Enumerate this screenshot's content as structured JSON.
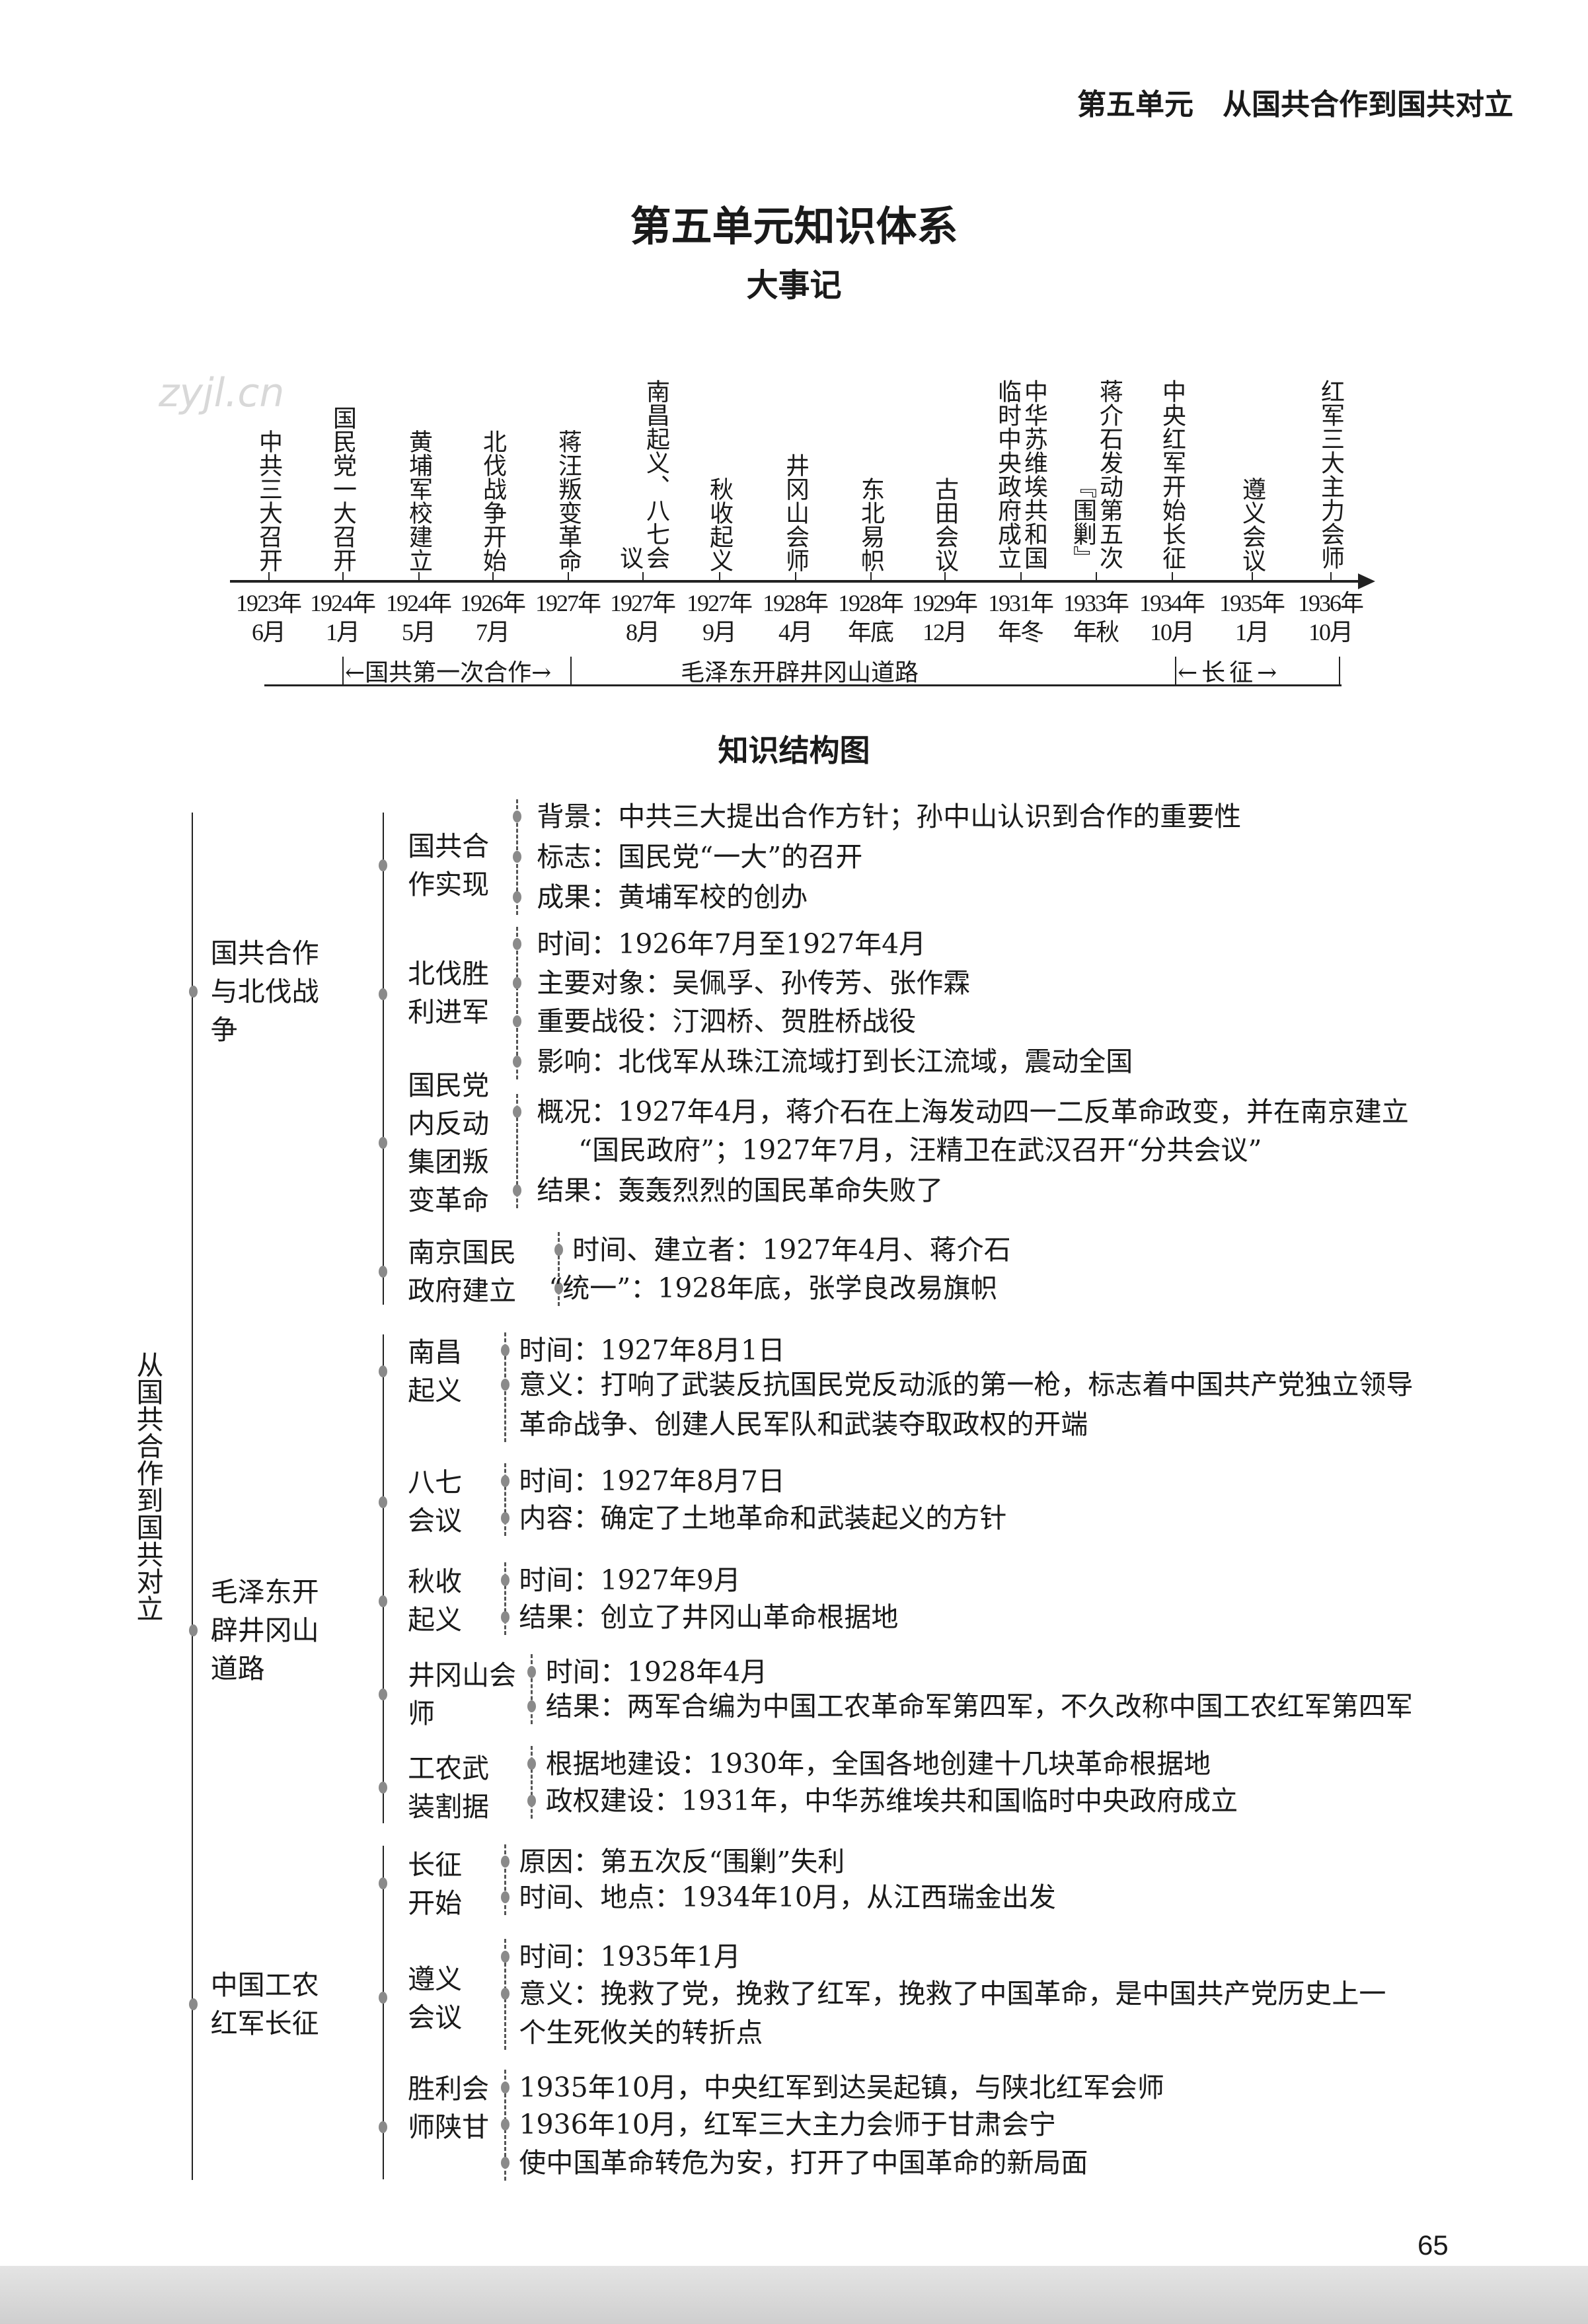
{
  "header": {
    "running_title": "第五单元　从国共合作到国共对立"
  },
  "watermark": "zyjl.cn",
  "title": "第五单元知识体系",
  "timeline": {
    "heading": "大事记",
    "events": [
      {
        "label": "中共三大召开",
        "year": "1923年",
        "month": "6月"
      },
      {
        "label": "国民党一大召开",
        "year": "1924年",
        "month": "1月"
      },
      {
        "label": "黄埔军校建立",
        "year": "1924年",
        "month": "5月"
      },
      {
        "label": "北伐战争开始",
        "year": "1926年",
        "month": "7月"
      },
      {
        "label": "蒋汪叛变革命",
        "year": "1927年",
        "month": ""
      },
      {
        "label": "南昌起义、八七会议",
        "year": "1927年",
        "month": "8月"
      },
      {
        "label": "秋收起义",
        "year": "1927年",
        "month": "9月"
      },
      {
        "label": "井冈山会师",
        "year": "1928年",
        "month": "4月"
      },
      {
        "label": "东北易帜",
        "year": "1928年",
        "month": "年底"
      },
      {
        "label": "古田会议",
        "year": "1929年",
        "month": "12月"
      },
      {
        "label": "中华苏维埃共和国临时中央政府成立",
        "year": "1931年",
        "month": "年冬"
      },
      {
        "label": "蒋介石发动第五次『围剿』",
        "year": "1933年",
        "month": "年秋"
      },
      {
        "label": "中央红军开始长征",
        "year": "1934年",
        "month": "10月"
      },
      {
        "label": "遵义会议",
        "year": "1935年",
        "month": "1月"
      },
      {
        "label": "红军三大主力会师",
        "year": "1936年",
        "month": "10月"
      }
    ],
    "periods": [
      "←国共第一次合作→",
      "毛泽东开辟井冈山道路",
      "←长征→"
    ]
  },
  "structure": {
    "heading": "知识结构图",
    "root": "从国共合作到国共对立",
    "branches": [
      {
        "label": "国共合作与北伐战争",
        "children": [
          {
            "label": "国共合作实现",
            "details": [
              "背景：中共三大提出合作方针；孙中山认识到合作的重要性",
              "标志：国民党“一大”的召开",
              "成果：黄埔军校的创办"
            ]
          },
          {
            "label": "北伐胜利进军",
            "details": [
              "时间：1926年7月至1927年4月",
              "主要对象：吴佩孚、孙传芳、张作霖",
              "重要战役：汀泗桥、贺胜桥战役",
              "影响：北伐军从珠江流域打到长江流域，震动全国"
            ]
          },
          {
            "label": "国民党内反动集团叛变革命",
            "details": [
              "概况：1927年4月，蒋介石在上海发动四一二反革命政变，并在南京建立",
              "“国民政府”；1927年7月，汪精卫在武汉召开“分共会议”",
              "结果：轰轰烈烈的国民革命失败了"
            ]
          },
          {
            "label": "南京国民政府建立",
            "details": [
              "时间、建立者：1927年4月、蒋介石",
              "“统一”：1928年底，张学良改易旗帜"
            ]
          }
        ]
      },
      {
        "label": "毛泽东开辟井冈山道路",
        "children": [
          {
            "label": "南昌起义",
            "details": [
              "时间：1927年8月1日",
              "意义：打响了武装反抗国民党反动派的第一枪，标志着中国共产党独立领导",
              "革命战争、创建人民军队和武装夺取政权的开端"
            ]
          },
          {
            "label": "八七会议",
            "details": [
              "时间：1927年8月7日",
              "内容：确定了土地革命和武装起义的方针"
            ]
          },
          {
            "label": "秋收起义",
            "details": [
              "时间：1927年9月",
              "结果：创立了井冈山革命根据地"
            ]
          },
          {
            "label": "井冈山会师",
            "details": [
              "时间：1928年4月",
              "结果：两军合编为中国工农革命军第四军，不久改称中国工农红军第四军"
            ]
          },
          {
            "label": "工农武装割据",
            "details": [
              "根据地建设：1930年，全国各地创建十几块革命根据地",
              "政权建设：1931年，中华苏维埃共和国临时中央政府成立"
            ]
          }
        ]
      },
      {
        "label": "中国工农红军长征",
        "children": [
          {
            "label": "长征开始",
            "details": [
              "原因：第五次反“围剿”失利",
              "时间、地点：1934年10月，从江西瑞金出发"
            ]
          },
          {
            "label": "遵义会议",
            "details": [
              "时间：1935年1月",
              "意义：挽救了党，挽救了红军，挽救了中国革命，是中国共产党历史上一",
              "个生死攸关的转折点"
            ]
          },
          {
            "label": "胜利会师陕甘",
            "details": [
              "1935年10月，中央红军到达吴起镇，与陕北红军会师",
              "1936年10月，红军三大主力会师于甘肃会宁",
              "使中国革命转危为安，打开了中国革命的新局面"
            ]
          }
        ]
      }
    ]
  },
  "page_number": "65"
}
